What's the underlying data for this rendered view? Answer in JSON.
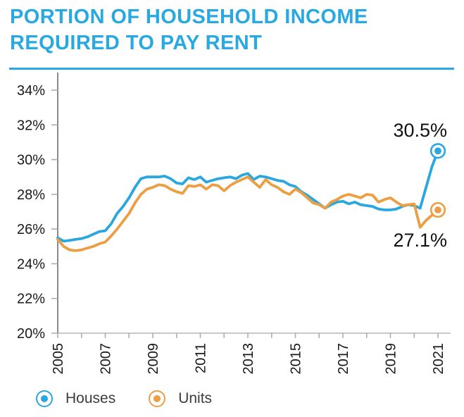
{
  "header": {
    "title": "PORTION OF HOUSEHOLD INCOME REQUIRED TO PAY RENT"
  },
  "accent_colors": {
    "title_blue": "#29A9E1",
    "houses_blue": "#2AA7DF",
    "units_orange": "#EC9F42",
    "label_text": "#1A1A1A"
  },
  "chart_data": {
    "type": "line",
    "title": "PORTION OF HOUSEHOLD INCOME REQUIRED TO PAY RENT",
    "xlabel": "",
    "ylabel": "",
    "ylim": [
      20,
      34
    ],
    "grid": false,
    "legend_position": "bottom",
    "x": [
      2005,
      2005.25,
      2005.5,
      2005.75,
      2006,
      2006.25,
      2006.5,
      2006.75,
      2007,
      2007.25,
      2007.5,
      2007.75,
      2008,
      2008.25,
      2008.5,
      2008.75,
      2009,
      2009.25,
      2009.5,
      2009.75,
      2010,
      2010.25,
      2010.5,
      2010.75,
      2011,
      2011.25,
      2011.5,
      2011.75,
      2012,
      2012.25,
      2012.5,
      2012.75,
      2013,
      2013.25,
      2013.5,
      2013.75,
      2014,
      2014.25,
      2014.5,
      2014.75,
      2015,
      2015.25,
      2015.5,
      2015.75,
      2016,
      2016.25,
      2016.5,
      2016.75,
      2017,
      2017.25,
      2017.5,
      2017.75,
      2018,
      2018.25,
      2018.5,
      2018.75,
      2019,
      2019.25,
      2019.5,
      2019.75,
      2020,
      2020.25,
      2020.5,
      2020.75,
      2021
    ],
    "series": [
      {
        "name": "Houses",
        "color": "#2AA7DF",
        "values": [
          25.5,
          25.3,
          25.35,
          25.4,
          25.45,
          25.55,
          25.7,
          25.85,
          25.9,
          26.3,
          26.9,
          27.3,
          27.8,
          28.4,
          28.9,
          29.0,
          29.0,
          29.0,
          29.05,
          28.9,
          28.65,
          28.6,
          28.95,
          28.85,
          29.0,
          28.7,
          28.8,
          28.9,
          28.95,
          29.0,
          28.9,
          29.1,
          29.2,
          28.85,
          29.05,
          29.0,
          28.9,
          28.8,
          28.75,
          28.55,
          28.45,
          28.15,
          27.95,
          27.7,
          27.45,
          27.2,
          27.4,
          27.55,
          27.6,
          27.45,
          27.55,
          27.4,
          27.35,
          27.3,
          27.15,
          27.1,
          27.1,
          27.15,
          27.3,
          27.4,
          27.35,
          27.2,
          28.4,
          29.6,
          30.5
        ]
      },
      {
        "name": "Units",
        "color": "#EC9F42",
        "values": [
          25.4,
          25.0,
          24.8,
          24.75,
          24.8,
          24.9,
          25.0,
          25.15,
          25.25,
          25.6,
          26.0,
          26.45,
          26.9,
          27.5,
          28.0,
          28.3,
          28.4,
          28.55,
          28.5,
          28.3,
          28.15,
          28.05,
          28.5,
          28.45,
          28.55,
          28.3,
          28.55,
          28.5,
          28.2,
          28.5,
          28.7,
          28.85,
          29.0,
          28.7,
          28.4,
          28.85,
          28.55,
          28.4,
          28.15,
          28.0,
          28.3,
          28.1,
          27.8,
          27.5,
          27.4,
          27.2,
          27.55,
          27.7,
          27.9,
          28.0,
          27.9,
          27.8,
          28.0,
          27.95,
          27.55,
          27.7,
          27.8,
          27.55,
          27.35,
          27.4,
          27.45,
          26.1,
          26.5,
          26.8,
          27.1
        ]
      }
    ],
    "yticks": {
      "values": [
        20,
        22,
        24,
        26,
        28,
        30,
        32,
        34
      ],
      "labels": [
        "20%",
        "22%",
        "24%",
        "26%",
        "28%",
        "30%",
        "32%",
        "34%"
      ]
    },
    "xticks": {
      "values": [
        2005,
        2006,
        2007,
        2008,
        2009,
        2010,
        2011,
        2012,
        2013,
        2014,
        2015,
        2016,
        2017,
        2018,
        2019,
        2020,
        2021
      ]
    },
    "xtick_labels": {
      "values": [
        2005,
        2007,
        2009,
        2011,
        2013,
        2015,
        2017,
        2019,
        2021
      ],
      "labels": [
        "2005",
        "2007",
        "2009",
        "2011",
        "2013",
        "2015",
        "2017",
        "2019",
        "2021"
      ]
    },
    "annotations": [
      {
        "series": "Houses",
        "text": "30.5%",
        "position": "above"
      },
      {
        "series": "Units",
        "text": "27.1%",
        "position": "below"
      }
    ]
  },
  "legend": {
    "items": [
      {
        "label": "Houses",
        "color": "#2AA7DF"
      },
      {
        "label": "Units",
        "color": "#EC9F42"
      }
    ]
  }
}
